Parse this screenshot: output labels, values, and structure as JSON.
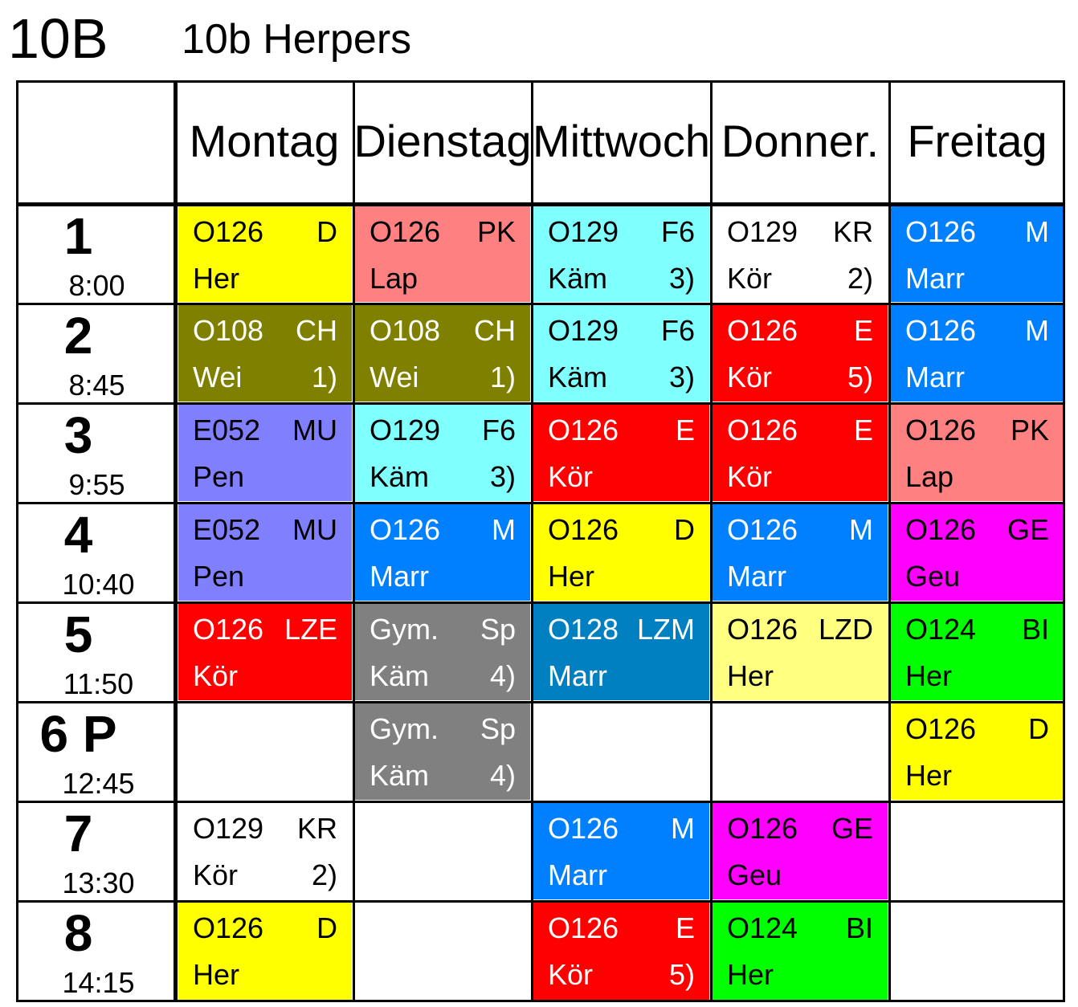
{
  "header": {
    "class_code": "10B",
    "class_name": "10b Herpers"
  },
  "days": [
    "Montag",
    "Dienstag",
    "Mittwoch",
    "Donner.",
    "Freitag"
  ],
  "periods": [
    {
      "num": "1",
      "time": "8:00"
    },
    {
      "num": "2",
      "time": "8:45"
    },
    {
      "num": "3",
      "time": "9:55"
    },
    {
      "num": "4",
      "time": "10:40"
    },
    {
      "num": "5",
      "time": "11:50"
    },
    {
      "num": "6 P",
      "time": "12:45"
    },
    {
      "num": "7",
      "time": "13:30"
    },
    {
      "num": "8",
      "time": "14:15"
    }
  ],
  "colors": {
    "D": "#ffff00",
    "PK": "#ff8080",
    "F6": "#80ffff",
    "KR": "#ffffff",
    "M": "#0080ff",
    "CH": "#808000",
    "E": "#ff0000",
    "MU": "#8080ff",
    "GE": "#ff00ff",
    "LZE": "#ff0000",
    "Sp": "#808080",
    "LZM": "#0080c0",
    "LZD": "#ffff80",
    "BI": "#00ff00"
  },
  "lessons": [
    [
      {
        "room": "O126",
        "subject": "D",
        "teacher": "Her",
        "note": "",
        "color": "#ffff00",
        "text": "#000000"
      },
      {
        "room": "O126",
        "subject": "PK",
        "teacher": "Lap",
        "note": "",
        "color": "#ff8080",
        "text": "#000000"
      },
      {
        "room": "O129",
        "subject": "F6",
        "teacher": "Käm",
        "note": "3)",
        "color": "#80ffff",
        "text": "#000000"
      },
      {
        "room": "O129",
        "subject": "KR",
        "teacher": "Kör",
        "note": "2)",
        "color": "#ffffff",
        "text": "#000000"
      },
      {
        "room": "O126",
        "subject": "M",
        "teacher": "Marr",
        "note": "",
        "color": "#0080ff",
        "text": "#ffffff"
      }
    ],
    [
      {
        "room": "O108",
        "subject": "CH",
        "teacher": "Wei",
        "note": "1)",
        "color": "#808000",
        "text": "#ffffff"
      },
      {
        "room": "O108",
        "subject": "CH",
        "teacher": "Wei",
        "note": "1)",
        "color": "#808000",
        "text": "#ffffff"
      },
      {
        "room": "O129",
        "subject": "F6",
        "teacher": "Käm",
        "note": "3)",
        "color": "#80ffff",
        "text": "#000000"
      },
      {
        "room": "O126",
        "subject": "E",
        "teacher": "Kör",
        "note": "5)",
        "color": "#ff0000",
        "text": "#ffffff"
      },
      {
        "room": "O126",
        "subject": "M",
        "teacher": "Marr",
        "note": "",
        "color": "#0080ff",
        "text": "#ffffff"
      }
    ],
    [
      {
        "room": "E052",
        "subject": "MU",
        "teacher": "Pen",
        "note": "",
        "color": "#8080ff",
        "text": "#000000"
      },
      {
        "room": "O129",
        "subject": "F6",
        "teacher": "Käm",
        "note": "3)",
        "color": "#80ffff",
        "text": "#000000"
      },
      {
        "room": "O126",
        "subject": "E",
        "teacher": "Kör",
        "note": "",
        "color": "#ff0000",
        "text": "#ffffff"
      },
      {
        "room": "O126",
        "subject": "E",
        "teacher": "Kör",
        "note": "",
        "color": "#ff0000",
        "text": "#ffffff"
      },
      {
        "room": "O126",
        "subject": "PK",
        "teacher": "Lap",
        "note": "",
        "color": "#ff8080",
        "text": "#000000"
      }
    ],
    [
      {
        "room": "E052",
        "subject": "MU",
        "teacher": "Pen",
        "note": "",
        "color": "#8080ff",
        "text": "#000000"
      },
      {
        "room": "O126",
        "subject": "M",
        "teacher": "Marr",
        "note": "",
        "color": "#0080ff",
        "text": "#ffffff"
      },
      {
        "room": "O126",
        "subject": "D",
        "teacher": "Her",
        "note": "",
        "color": "#ffff00",
        "text": "#000000"
      },
      {
        "room": "O126",
        "subject": "M",
        "teacher": "Marr",
        "note": "",
        "color": "#0080ff",
        "text": "#ffffff"
      },
      {
        "room": "O126",
        "subject": "GE",
        "teacher": "Geu",
        "note": "",
        "color": "#ff00ff",
        "text": "#000000"
      }
    ],
    [
      {
        "room": "O126",
        "subject": "LZE",
        "teacher": "Kör",
        "note": "",
        "color": "#ff0000",
        "text": "#ffffff"
      },
      {
        "room": "Gym.",
        "subject": "Sp",
        "teacher": "Käm",
        "note": "4)",
        "color": "#808080",
        "text": "#ffffff"
      },
      {
        "room": "O128",
        "subject": "LZM",
        "teacher": "Marr",
        "note": "",
        "color": "#0080c0",
        "text": "#ffffff"
      },
      {
        "room": "O126",
        "subject": "LZD",
        "teacher": "Her",
        "note": "",
        "color": "#ffff80",
        "text": "#000000"
      },
      {
        "room": "O124",
        "subject": "BI",
        "teacher": "Her",
        "note": "",
        "color": "#00ff00",
        "text": "#000000"
      }
    ],
    [
      null,
      {
        "room": "Gym.",
        "subject": "Sp",
        "teacher": "Käm",
        "note": "4)",
        "color": "#808080",
        "text": "#ffffff"
      },
      null,
      null,
      {
        "room": "O126",
        "subject": "D",
        "teacher": "Her",
        "note": "",
        "color": "#ffff00",
        "text": "#000000"
      }
    ],
    [
      {
        "room": "O129",
        "subject": "KR",
        "teacher": "Kör",
        "note": "2)",
        "color": "#ffffff",
        "text": "#000000"
      },
      null,
      {
        "room": "O126",
        "subject": "M",
        "teacher": "Marr",
        "note": "",
        "color": "#0080ff",
        "text": "#ffffff"
      },
      {
        "room": "O126",
        "subject": "GE",
        "teacher": "Geu",
        "note": "",
        "color": "#ff00ff",
        "text": "#000000"
      },
      null
    ],
    [
      {
        "room": "O126",
        "subject": "D",
        "teacher": "Her",
        "note": "",
        "color": "#ffff00",
        "text": "#000000"
      },
      null,
      {
        "room": "O126",
        "subject": "E",
        "teacher": "Kör",
        "note": "5)",
        "color": "#ff0000",
        "text": "#ffffff"
      },
      {
        "room": "O124",
        "subject": "BI",
        "teacher": "Her",
        "note": "",
        "color": "#00ff00",
        "text": "#000000"
      },
      null
    ]
  ]
}
